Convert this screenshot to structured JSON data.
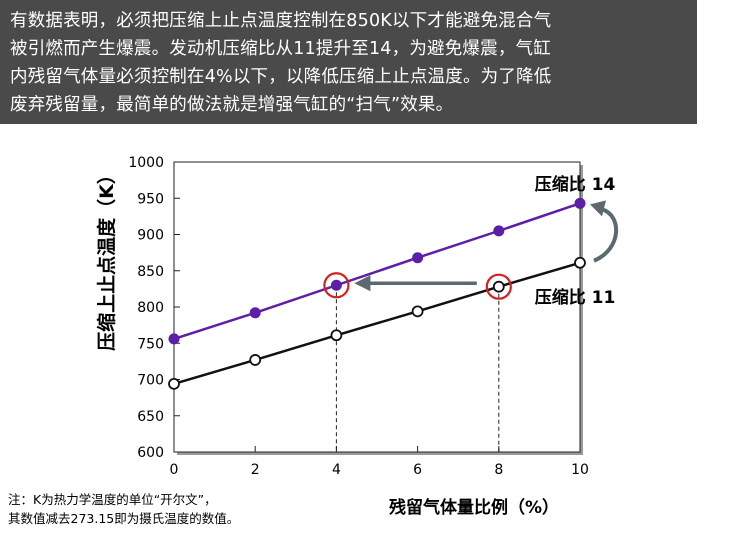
{
  "banner": {
    "lines": [
      "有数据表明，必须把压缩上止点温度控制在850K以下才能避免混合气",
      "被引燃而产生爆震。发动机压缩比从11提升至14，为避免爆震，气缸",
      "内残留气体量必须控制在4%以下，以降低压缩上止点温度。为了降低",
      "废弃残留量，最简单的做法就是增强气缸的“扫气”效果。"
    ]
  },
  "chart_data": {
    "type": "line",
    "ylabel": "压缩上止点温度（K）",
    "xlabel": "残留气体量比例（%）",
    "x": [
      0,
      2,
      4,
      6,
      8,
      10
    ],
    "xlim": [
      0,
      10
    ],
    "ylim": [
      600,
      1000
    ],
    "xticks": [
      "0",
      "2",
      "4",
      "6",
      "8",
      "10"
    ],
    "yticks": [
      "600",
      "650",
      "700",
      "750",
      "800",
      "850",
      "900",
      "950",
      "1000"
    ],
    "grid": false,
    "series": [
      {
        "name": "压缩比 14",
        "values": [
          756,
          792,
          830,
          868,
          905,
          943
        ],
        "color": "#5b1fa8",
        "marker": "filled"
      },
      {
        "name": "压缩比 11",
        "values": [
          694,
          727,
          761,
          794,
          828,
          861
        ],
        "color": "#111111",
        "marker": "hollow"
      }
    ],
    "highlight_color": "#d42020",
    "arrow_color": "#5a6a70"
  },
  "footnote": {
    "line1": "注：K为热力学温度的单位“开尔文”，",
    "line2": "其数值减去273.15即为摄氏温度的数值。"
  }
}
